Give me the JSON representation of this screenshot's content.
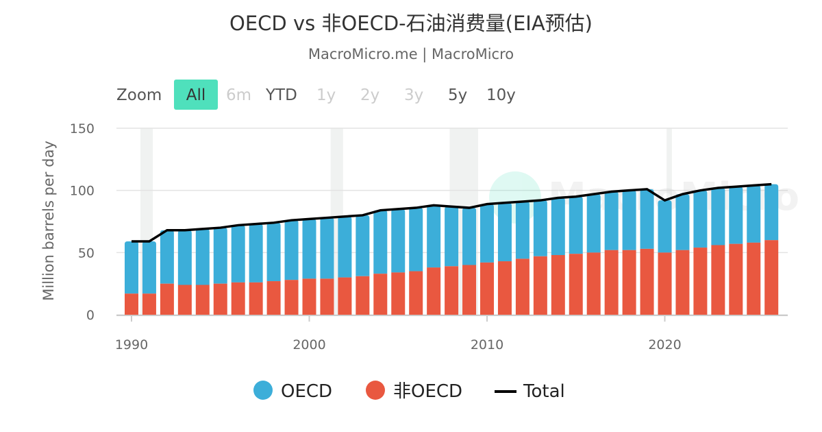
{
  "title": "OECD vs 非OECD-石油消费量(EIA预估)",
  "subtitle": "MacroMicro.me | MacroMicro",
  "watermark": "MacroMicro",
  "zoom": {
    "label": "Zoom",
    "buttons": [
      {
        "label": "All",
        "active": true,
        "enabled": true
      },
      {
        "label": "6m",
        "active": false,
        "enabled": false
      },
      {
        "label": "YTD",
        "active": false,
        "enabled": true
      },
      {
        "label": "1y",
        "active": false,
        "enabled": false
      },
      {
        "label": "2y",
        "active": false,
        "enabled": false
      },
      {
        "label": "3y",
        "active": false,
        "enabled": false
      },
      {
        "label": "5y",
        "active": false,
        "enabled": true
      },
      {
        "label": "10y",
        "active": false,
        "enabled": true
      }
    ],
    "active_color": "#4fe0bc"
  },
  "chart_data": {
    "type": "bar",
    "stacked": true,
    "ylabel": "Million barrels per day",
    "ylim": [
      0,
      150
    ],
    "yticks": [
      0,
      50,
      100,
      150
    ],
    "xticks": [
      1990,
      2000,
      2010,
      2020
    ],
    "grid": true,
    "legend_position": "bottom",
    "shaded_periods": [
      [
        1990.5,
        1991.2
      ],
      [
        2001.2,
        2001.9
      ],
      [
        2007.9,
        2009.5
      ],
      [
        2020.1,
        2020.4
      ]
    ],
    "x": [
      1990,
      1991,
      1992,
      1993,
      1994,
      1995,
      1996,
      1997,
      1998,
      1999,
      2000,
      2001,
      2002,
      2003,
      2004,
      2005,
      2006,
      2007,
      2008,
      2009,
      2010,
      2011,
      2012,
      2013,
      2014,
      2015,
      2016,
      2017,
      2018,
      2019,
      2020,
      2021,
      2022,
      2023,
      2024,
      2025,
      2026
    ],
    "series": [
      {
        "name": "OECD",
        "type": "bar",
        "color": "#3caed9",
        "values": [
          42,
          42,
          43,
          44,
          45,
          45,
          46,
          47,
          47,
          48,
          48,
          49,
          49,
          49,
          51,
          51,
          51,
          50,
          48,
          46,
          47,
          47,
          46,
          45,
          46,
          46,
          47,
          47,
          48,
          48,
          42,
          45,
          46,
          46,
          46,
          46,
          45
        ]
      },
      {
        "name": "非OECD",
        "type": "bar",
        "color": "#e95840",
        "values": [
          17,
          17,
          25,
          24,
          24,
          25,
          26,
          26,
          27,
          28,
          29,
          29,
          30,
          31,
          33,
          34,
          35,
          38,
          39,
          40,
          42,
          43,
          45,
          47,
          48,
          49,
          50,
          52,
          52,
          53,
          50,
          52,
          54,
          56,
          57,
          58,
          60
        ]
      },
      {
        "name": "Total",
        "type": "line",
        "color": "#000000",
        "values": [
          59,
          59,
          68,
          68,
          69,
          70,
          72,
          73,
          74,
          76,
          77,
          78,
          79,
          80,
          84,
          85,
          86,
          88,
          87,
          86,
          89,
          90,
          91,
          92,
          94,
          95,
          97,
          99,
          100,
          101,
          92,
          97,
          100,
          102,
          103,
          104,
          105
        ]
      }
    ]
  }
}
